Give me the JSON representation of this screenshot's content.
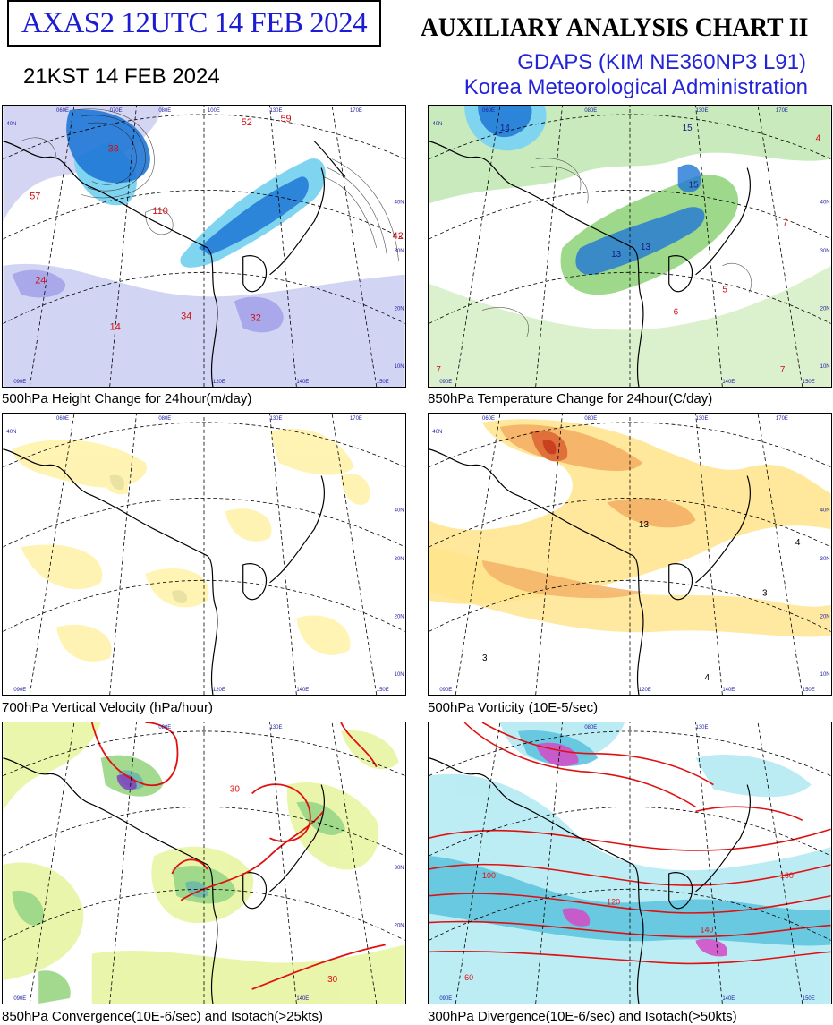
{
  "header": {
    "product_code": "AXAS2  12UTC 14 FEB 2024",
    "local_time": "21KST 14 FEB 2024",
    "title": "AUXILIARY ANALYSIS CHART II",
    "model": "GDAPS (KIM NE360NP3 L91)",
    "agency": "Korea Meteorological Administration"
  },
  "colors": {
    "title_blue": "#2323d8",
    "negative_fill": "#7fd4f0",
    "strong_negative_fill": "#1f77d6",
    "positive_fill": "#c8c0ee",
    "green_fill": "#9ed88a",
    "yellow_fill": "#fff3b0",
    "orange_fill": "#f5b56a",
    "isotach_red": "#e01010",
    "magenta_fill": "#d050c8"
  },
  "panels": [
    {
      "caption": "500hPa Height Change for 24hour(m/day)",
      "labels": [
        "33",
        "110",
        "57",
        "24",
        "34",
        "32",
        "14",
        "52",
        "59",
        "42"
      ]
    },
    {
      "caption": "850hPa Temperature Change for 24hour(C/day)",
      "labels": [
        "14",
        "15",
        "13",
        "13",
        "15",
        "5",
        "6",
        "7",
        "7",
        "7",
        "4"
      ]
    },
    {
      "caption": "700hPa Vertical Velocity (hPa/hour)",
      "labels": []
    },
    {
      "caption": "500hPa Vorticity (10E-5/sec)",
      "labels": [
        "13",
        "4",
        "3",
        "3",
        "4"
      ]
    },
    {
      "caption": "850hPa Convergence(10E-6/sec) and Isotach(>25kts)",
      "labels": [
        "30",
        "30"
      ]
    },
    {
      "caption": "300hPa Divergence(10E-6/sec) and Isotach(>50kts)",
      "labels": [
        "100",
        "120",
        "140",
        "160",
        "60"
      ]
    }
  ],
  "grid_labels": {
    "longitudes_top": [
      "060E",
      "070E",
      "080E",
      "090E",
      "100E",
      "110E",
      "120E",
      "130E",
      "140E",
      "150E",
      "160E",
      "170E"
    ],
    "longitudes_bottom": [
      "090E",
      "100E",
      "120E",
      "130E",
      "140E",
      "150E"
    ],
    "latitudes": [
      "40N",
      "30N",
      "20N",
      "10N"
    ]
  }
}
